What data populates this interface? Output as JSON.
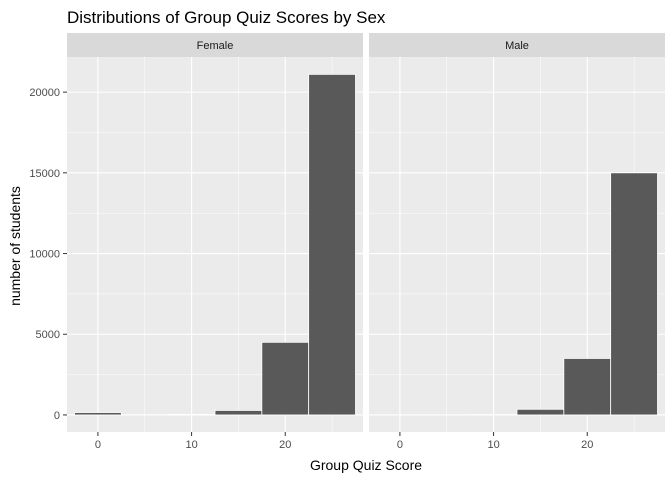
{
  "chart_data": {
    "type": "bar",
    "title": "Distributions of Group Quiz Scores by Sex",
    "xlabel": "Group Quiz Score",
    "ylabel": "number of students",
    "xlim": [
      -3.3,
      28.3
    ],
    "ylim": [
      -1056,
      22176
    ],
    "x_ticks": [
      0,
      10,
      20
    ],
    "y_ticks": [
      0,
      5000,
      10000,
      15000,
      20000
    ],
    "bin_width": 5,
    "bins": [
      0,
      5,
      10,
      15,
      20,
      25
    ],
    "facets": [
      {
        "label": "Female",
        "values": [
          150,
          10,
          40,
          280,
          4500,
          21100
        ]
      },
      {
        "label": "Male",
        "values": [
          0,
          0,
          20,
          350,
          3500,
          15000
        ]
      }
    ],
    "colors": {
      "bar_fill": "#595959",
      "bar_stroke": "#ffffff",
      "panel_bg": "#ebebeb",
      "strip_bg": "#d9d9d9",
      "grid": "#ffffff"
    },
    "grid": true,
    "legend": "none"
  }
}
